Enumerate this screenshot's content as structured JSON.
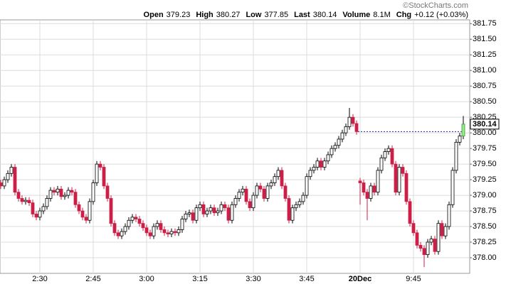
{
  "watermark": "©StockCharts.com",
  "header": [
    {
      "label": "Open",
      "value": "379.23"
    },
    {
      "label": "High",
      "value": "380.27"
    },
    {
      "label": "Low",
      "value": "377.85"
    },
    {
      "label": "Last",
      "value": "380.14"
    },
    {
      "label": "Volume",
      "value": "8.1M"
    },
    {
      "label": "Chg",
      "value": "+0.12 (+0.03%)"
    }
  ],
  "chart_data": {
    "type": "candlestick",
    "categories": [
      null,
      null,
      null,
      null,
      null,
      null,
      null,
      null,
      null,
      null,
      null,
      "2:30",
      null,
      null,
      null,
      null,
      null,
      null,
      null,
      null,
      null,
      null,
      null,
      null,
      null,
      null,
      "2:45",
      null,
      null,
      null,
      null,
      null,
      null,
      null,
      null,
      null,
      null,
      null,
      null,
      null,
      null,
      "3:00",
      null,
      null,
      null,
      null,
      null,
      null,
      null,
      null,
      null,
      null,
      null,
      null,
      null,
      null,
      "3:15",
      null,
      null,
      null,
      null,
      null,
      null,
      null,
      null,
      null,
      null,
      null,
      null,
      null,
      null,
      "3:30",
      null,
      null,
      null,
      null,
      null,
      null,
      null,
      null,
      null,
      null,
      null,
      null,
      null,
      null,
      "3:45",
      null,
      null,
      null,
      null,
      null,
      null,
      null,
      null,
      null,
      null,
      null,
      null,
      null,
      null,
      "20Dec",
      null,
      null,
      null,
      null,
      null,
      null,
      null,
      null,
      null,
      null,
      null,
      null,
      null,
      null,
      "9:45",
      null,
      null,
      null,
      null,
      null,
      null,
      null,
      null,
      null,
      null,
      null,
      null,
      null,
      null
    ],
    "open": [
      379.2,
      379.15,
      379.25,
      379.35,
      379.45,
      379.05,
      378.95,
      378.9,
      378.92,
      378.88,
      378.7,
      378.65,
      378.75,
      378.82,
      378.95,
      379.08,
      379.05,
      379.1,
      378.98,
      379.0,
      379.08,
      379.05,
      378.85,
      378.75,
      378.65,
      378.6,
      378.9,
      379.2,
      379.5,
      379.45,
      379.15,
      378.95,
      378.55,
      378.4,
      378.35,
      378.42,
      378.5,
      378.6,
      378.65,
      378.62,
      378.55,
      378.48,
      378.4,
      378.35,
      378.5,
      378.55,
      378.45,
      378.4,
      378.38,
      378.42,
      378.4,
      378.45,
      378.62,
      378.7,
      378.72,
      378.6,
      378.8,
      378.85,
      378.7,
      378.75,
      378.8,
      378.72,
      378.75,
      378.85,
      378.8,
      378.6,
      378.85,
      378.95,
      379.05,
      379.1,
      378.9,
      378.8,
      379.0,
      379.15,
      379.1,
      378.95,
      379.15,
      379.2,
      379.3,
      379.4,
      379.15,
      378.95,
      378.6,
      378.8,
      378.85,
      378.9,
      379.0,
      379.3,
      379.4,
      379.45,
      379.55,
      379.45,
      379.55,
      379.65,
      379.75,
      379.8,
      379.9,
      380.0,
      380.1,
      380.25,
      380.15,
      379.23,
      379.2,
      379.05,
      378.95,
      379.15,
      379.05,
      379.4,
      379.6,
      379.7,
      379.75,
      379.5,
      379.05,
      379.45,
      379.35,
      378.9,
      378.55,
      378.4,
      378.2,
      378.15,
      378.05,
      378.25,
      378.3,
      378.1,
      378.55,
      378.35,
      378.5,
      378.85,
      379.4,
      379.85,
      379.95
    ],
    "high": [
      379.25,
      379.3,
      379.4,
      379.5,
      379.5,
      379.1,
      379.0,
      378.97,
      378.97,
      378.93,
      378.75,
      378.8,
      378.87,
      379.0,
      379.13,
      379.13,
      379.15,
      379.15,
      379.05,
      379.13,
      379.13,
      379.1,
      378.9,
      378.8,
      378.7,
      378.95,
      379.25,
      379.55,
      379.55,
      379.5,
      379.2,
      379.0,
      378.6,
      378.45,
      378.47,
      378.55,
      378.65,
      378.7,
      378.7,
      378.67,
      378.6,
      378.53,
      378.45,
      378.55,
      378.6,
      378.6,
      378.5,
      378.45,
      378.47,
      378.47,
      378.5,
      378.67,
      378.75,
      378.77,
      378.77,
      378.85,
      378.9,
      378.9,
      378.8,
      378.85,
      378.85,
      378.8,
      378.9,
      378.9,
      378.85,
      378.9,
      379.0,
      379.1,
      379.15,
      379.15,
      378.95,
      379.05,
      379.2,
      379.2,
      379.15,
      379.2,
      379.25,
      379.35,
      379.45,
      379.45,
      379.2,
      379.0,
      378.85,
      378.9,
      378.95,
      379.05,
      379.35,
      379.45,
      379.5,
      379.6,
      379.6,
      379.6,
      379.7,
      379.8,
      379.85,
      379.95,
      380.05,
      380.15,
      380.4,
      380.3,
      380.2,
      379.28,
      379.25,
      379.1,
      379.2,
      379.2,
      379.45,
      379.65,
      379.75,
      379.8,
      379.8,
      379.55,
      379.5,
      379.5,
      379.4,
      378.95,
      378.6,
      378.45,
      378.25,
      378.2,
      378.3,
      378.35,
      378.35,
      378.6,
      378.6,
      378.55,
      378.9,
      379.45,
      379.9,
      380.0,
      380.27
    ],
    "low": [
      379.1,
      379.1,
      379.2,
      379.3,
      379.0,
      378.9,
      378.85,
      378.85,
      378.83,
      378.65,
      378.6,
      378.6,
      378.7,
      378.77,
      378.9,
      379.0,
      379.0,
      378.93,
      378.93,
      378.95,
      379.0,
      378.8,
      378.7,
      378.6,
      378.55,
      378.55,
      378.85,
      379.15,
      379.4,
      379.1,
      378.9,
      378.5,
      378.35,
      378.3,
      378.3,
      378.37,
      378.45,
      378.55,
      378.57,
      378.5,
      378.43,
      378.35,
      378.3,
      378.3,
      378.45,
      378.4,
      378.35,
      378.33,
      378.33,
      378.35,
      378.35,
      378.4,
      378.57,
      378.65,
      378.55,
      378.55,
      378.75,
      378.65,
      378.65,
      378.7,
      378.67,
      378.67,
      378.7,
      378.75,
      378.55,
      378.55,
      378.8,
      378.9,
      379.0,
      378.85,
      378.75,
      378.75,
      378.95,
      379.05,
      378.9,
      378.9,
      379.1,
      379.15,
      379.25,
      379.1,
      378.9,
      378.55,
      378.55,
      378.75,
      378.8,
      378.85,
      378.95,
      379.25,
      379.35,
      379.4,
      379.4,
      379.4,
      379.5,
      379.6,
      379.7,
      379.75,
      379.85,
      379.95,
      380.05,
      380.1,
      379.97,
      378.85,
      379.0,
      378.6,
      378.9,
      379.0,
      379.0,
      379.35,
      379.55,
      379.65,
      379.45,
      379.0,
      379.0,
      379.3,
      378.85,
      378.5,
      378.35,
      378.15,
      378.1,
      377.85,
      378.0,
      378.2,
      378.05,
      378.05,
      378.3,
      378.3,
      378.45,
      378.8,
      379.35,
      379.8,
      379.9
    ],
    "close": [
      379.15,
      379.25,
      379.35,
      379.45,
      379.05,
      378.95,
      378.9,
      378.92,
      378.88,
      378.7,
      378.65,
      378.75,
      378.82,
      378.95,
      379.08,
      379.05,
      379.1,
      378.98,
      379.0,
      379.08,
      379.05,
      378.85,
      378.75,
      378.65,
      378.6,
      378.9,
      379.2,
      379.5,
      379.45,
      379.15,
      378.95,
      378.55,
      378.4,
      378.35,
      378.42,
      378.5,
      378.6,
      378.65,
      378.62,
      378.55,
      378.48,
      378.4,
      378.35,
      378.5,
      378.55,
      378.45,
      378.4,
      378.38,
      378.42,
      378.4,
      378.45,
      378.62,
      378.7,
      378.72,
      378.6,
      378.8,
      378.85,
      378.7,
      378.75,
      378.8,
      378.72,
      378.75,
      378.85,
      378.8,
      378.6,
      378.85,
      378.95,
      379.05,
      379.1,
      378.9,
      378.8,
      379.0,
      379.15,
      379.1,
      378.95,
      379.15,
      379.2,
      379.3,
      379.4,
      379.15,
      378.95,
      378.6,
      378.8,
      378.85,
      378.9,
      379.0,
      379.3,
      379.4,
      379.45,
      379.55,
      379.45,
      379.55,
      379.65,
      379.75,
      379.8,
      379.9,
      380.0,
      380.1,
      380.25,
      380.15,
      380.02,
      379.2,
      379.05,
      378.95,
      379.15,
      379.05,
      379.4,
      379.6,
      379.7,
      379.75,
      379.5,
      379.05,
      379.45,
      379.35,
      378.9,
      378.55,
      378.4,
      378.2,
      378.15,
      378.05,
      378.25,
      378.3,
      378.1,
      378.55,
      378.35,
      378.5,
      378.85,
      379.4,
      379.85,
      379.95,
      380.14
    ],
    "up_color": "#ffffff",
    "down_color": "#cc1f47",
    "last_color": "#9be88f",
    "reference_line": 380.02,
    "ylim": [
      377.75,
      381.81
    ],
    "yticks": [
      {
        "value": 378,
        "label": "378.00"
      },
      378.25,
      {
        "value": 378.5,
        "label": "378.50"
      },
      378.75,
      {
        "value": 379,
        "label": "379.00"
      },
      379.25,
      {
        "value": 379.5,
        "label": "379.50"
      },
      379.75,
      {
        "value": 380,
        "label": "380.00"
      },
      380.25,
      {
        "value": 380.5,
        "label": "380.50"
      },
      380.75,
      {
        "value": 381,
        "label": "381.00"
      },
      381.25,
      {
        "value": 381.5,
        "label": "381.50"
      },
      381.75
    ],
    "grid": true
  }
}
